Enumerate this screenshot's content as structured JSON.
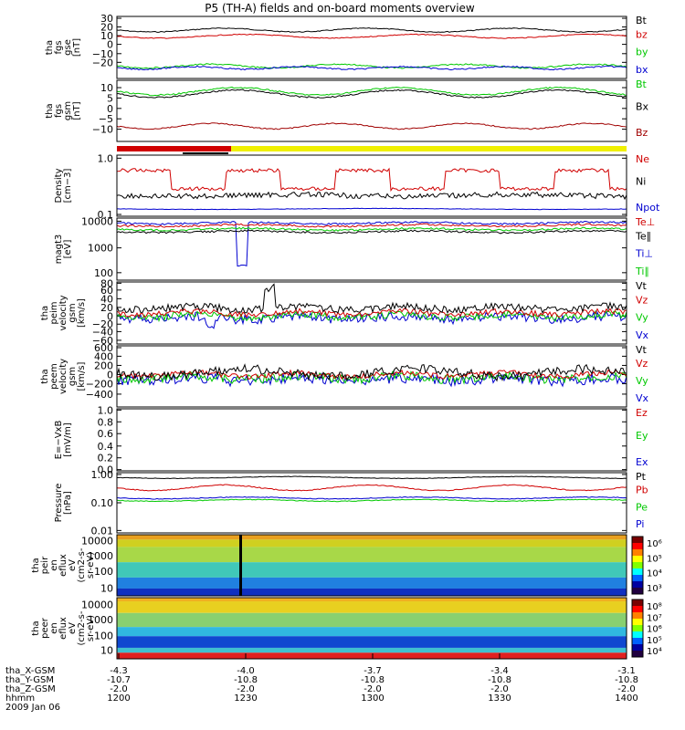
{
  "title": "P5 (TH-A) fields and on-board moments overview",
  "colors": {
    "black": "#000000",
    "red": "#d00000",
    "green": "#00c800",
    "blue": "#0000d0",
    "darkred": "#a00000",
    "yellow": "#f0f000"
  },
  "panels": [
    {
      "id": "fgs-gse",
      "ylabel": [
        "tha",
        "fgs",
        "gse",
        "[nT]"
      ],
      "yticks": [
        "30",
        "20",
        "10",
        "0",
        "−10",
        "−20"
      ],
      "legend": [
        {
          "t": "Bt",
          "c": "black"
        },
        {
          "t": "bz",
          "c": "red"
        },
        {
          "t": "by",
          "c": "green"
        },
        {
          "t": "bx",
          "c": "blue"
        }
      ]
    },
    {
      "id": "fgs-gsm",
      "ylabel": [
        "tha",
        "fgs",
        "gsm",
        "[nT]"
      ],
      "yticks": [
        "10",
        "5",
        "0",
        "−5",
        "−10"
      ],
      "legend": [
        {
          "t": "Bt",
          "c": "green"
        },
        {
          "t": "Bx",
          "c": "black"
        },
        {
          "t": "Bz",
          "c": "darkred"
        }
      ]
    },
    {
      "id": "density",
      "ylabel": [
        "Density",
        "[cm−3]"
      ],
      "yticks": [
        "1.0",
        "0.1"
      ],
      "legend": [
        {
          "t": "Ne",
          "c": "red"
        },
        {
          "t": "Ni",
          "c": "black"
        },
        {
          "t": "Npot",
          "c": "blue"
        }
      ]
    },
    {
      "id": "temp",
      "ylabel": [
        "magt3",
        "[eV]"
      ],
      "yticks": [
        "10000",
        "1000",
        "100"
      ],
      "legend": [
        {
          "t": "Te⊥",
          "c": "red"
        },
        {
          "t": "Te∥",
          "c": "black"
        },
        {
          "t": "Ti⊥",
          "c": "blue"
        },
        {
          "t": "Ti∥",
          "c": "green"
        }
      ]
    },
    {
      "id": "peim",
      "ylabel": [
        "tha",
        "peim",
        "velocity",
        "gsm",
        "[km/s]"
      ],
      "yticks": [
        "80",
        "60",
        "40",
        "20",
        "0",
        "−20",
        "−40",
        "−60"
      ],
      "legend": [
        {
          "t": "Vt",
          "c": "black"
        },
        {
          "t": "Vz",
          "c": "red"
        },
        {
          "t": "Vy",
          "c": "green"
        },
        {
          "t": "Vx",
          "c": "blue"
        }
      ]
    },
    {
      "id": "peem",
      "ylabel": [
        "tha",
        "peem",
        "velocity",
        "gsm",
        "[km/s]"
      ],
      "yticks": [
        "600",
        "400",
        "200",
        "0",
        "−200",
        "−400"
      ],
      "legend": [
        {
          "t": "Vt",
          "c": "black"
        },
        {
          "t": "Vz",
          "c": "red"
        },
        {
          "t": "Vy",
          "c": "green"
        },
        {
          "t": "Vx",
          "c": "blue"
        }
      ]
    },
    {
      "id": "efield",
      "ylabel": [
        "E=−VxB",
        "[mV/m]"
      ],
      "yticks": [
        "1.0",
        "0.8",
        "0.6",
        "0.4",
        "0.2",
        "0.0"
      ],
      "legend": [
        {
          "t": "Ez",
          "c": "red"
        },
        {
          "t": "Ey",
          "c": "green"
        },
        {
          "t": "Ex",
          "c": "blue"
        }
      ]
    },
    {
      "id": "pressure",
      "ylabel": [
        "Pressure",
        "[nPa]"
      ],
      "yticks": [
        "1.00",
        "0.10",
        "0.01"
      ],
      "legend": [
        {
          "t": "Pt",
          "c": "black"
        },
        {
          "t": "Pb",
          "c": "red"
        },
        {
          "t": "Pe",
          "c": "green"
        },
        {
          "t": "Pi",
          "c": "blue"
        }
      ]
    },
    {
      "id": "peir",
      "ylabel": [
        "tha",
        "peir",
        "en",
        "eflux",
        "eV",
        "(cm2-s-",
        "sr-eV)"
      ],
      "yticks": [
        "10000",
        "1000",
        "100",
        "10"
      ],
      "colorbar": [
        "10⁶",
        "10⁵",
        "10⁴",
        "10³"
      ]
    },
    {
      "id": "peer",
      "ylabel": [
        "tha",
        "peer",
        "en",
        "eflux",
        "eV",
        "(cm2-s-",
        "sr-eV)"
      ],
      "yticks": [
        "10000",
        "1000",
        "100",
        "10"
      ],
      "colorbar": [
        "10⁸",
        "10⁷",
        "10⁶",
        "10⁵",
        "10⁴"
      ]
    }
  ],
  "xaxis": {
    "row_labels": [
      "tha_X-GSM",
      "tha_Y-GSM",
      "tha_Z-GSM",
      "hhmm",
      "2009 Jan 06"
    ],
    "ticks": [
      {
        "x": "-4.3",
        "y": "-10.7",
        "z": "-2.0",
        "t": "1200"
      },
      {
        "x": "-4.0",
        "y": "-10.8",
        "z": "-2.0",
        "t": "1230"
      },
      {
        "x": "-3.7",
        "y": "-10.8",
        "z": "-2.0",
        "t": "1300"
      },
      {
        "x": "-3.4",
        "y": "-10.8",
        "z": "-2.0",
        "t": "1330"
      },
      {
        "x": "-3.1",
        "y": "-10.8",
        "z": "-2.0",
        "t": "1400"
      }
    ]
  },
  "chart_data": {
    "type": "line",
    "title": "P5 (TH-A) fields and on-board moments overview",
    "x_time_ticks": [
      "1200",
      "1230",
      "1300",
      "1330",
      "1400"
    ],
    "series_approx": {
      "fgs_gse": [
        {
          "name": "Bt",
          "values": [
            18,
            23,
            22,
            21,
            22,
            23
          ]
        },
        {
          "name": "bz",
          "values": [
            12,
            14,
            13,
            14,
            14,
            15
          ]
        },
        {
          "name": "by",
          "values": [
            -9,
            -8,
            -10,
            -8,
            -9,
            -8
          ]
        },
        {
          "name": "bx",
          "values": [
            -10,
            -10,
            -11,
            -10,
            -10,
            -11
          ]
        }
      ],
      "fgs_gsm": [
        {
          "name": "Bt",
          "values": [
            10,
            12,
            11,
            10,
            10,
            9
          ]
        },
        {
          "name": "Bx",
          "values": [
            8,
            10,
            9,
            8,
            9,
            8
          ]
        },
        {
          "name": "Bz",
          "values": [
            -6,
            -6,
            -7,
            -5,
            -6,
            -5
          ]
        }
      ],
      "density": [
        {
          "name": "Ne",
          "values": [
            0.5,
            0.5,
            0.3,
            0.5,
            0.4,
            0.4
          ]
        },
        {
          "name": "Ni",
          "values": [
            0.3,
            0.3,
            0.3,
            0.3,
            0.3,
            0.3
          ]
        },
        {
          "name": "Npot",
          "values": [
            0.12,
            0.12,
            0.12,
            0.12,
            0.12,
            0.12
          ]
        }
      ],
      "pressure": [
        {
          "name": "Pt",
          "values": [
            0.35,
            0.38,
            0.38,
            0.37,
            0.38,
            0.4
          ]
        },
        {
          "name": "Pb",
          "values": [
            0.2,
            0.22,
            0.2,
            0.21,
            0.21,
            0.22
          ]
        },
        {
          "name": "Pe",
          "values": [
            0.1,
            0.09,
            0.08,
            0.09,
            0.09,
            0.08
          ]
        },
        {
          "name": "Pi",
          "values": [
            0.1,
            0.1,
            0.1,
            0.1,
            0.1,
            0.1
          ]
        }
      ]
    }
  }
}
